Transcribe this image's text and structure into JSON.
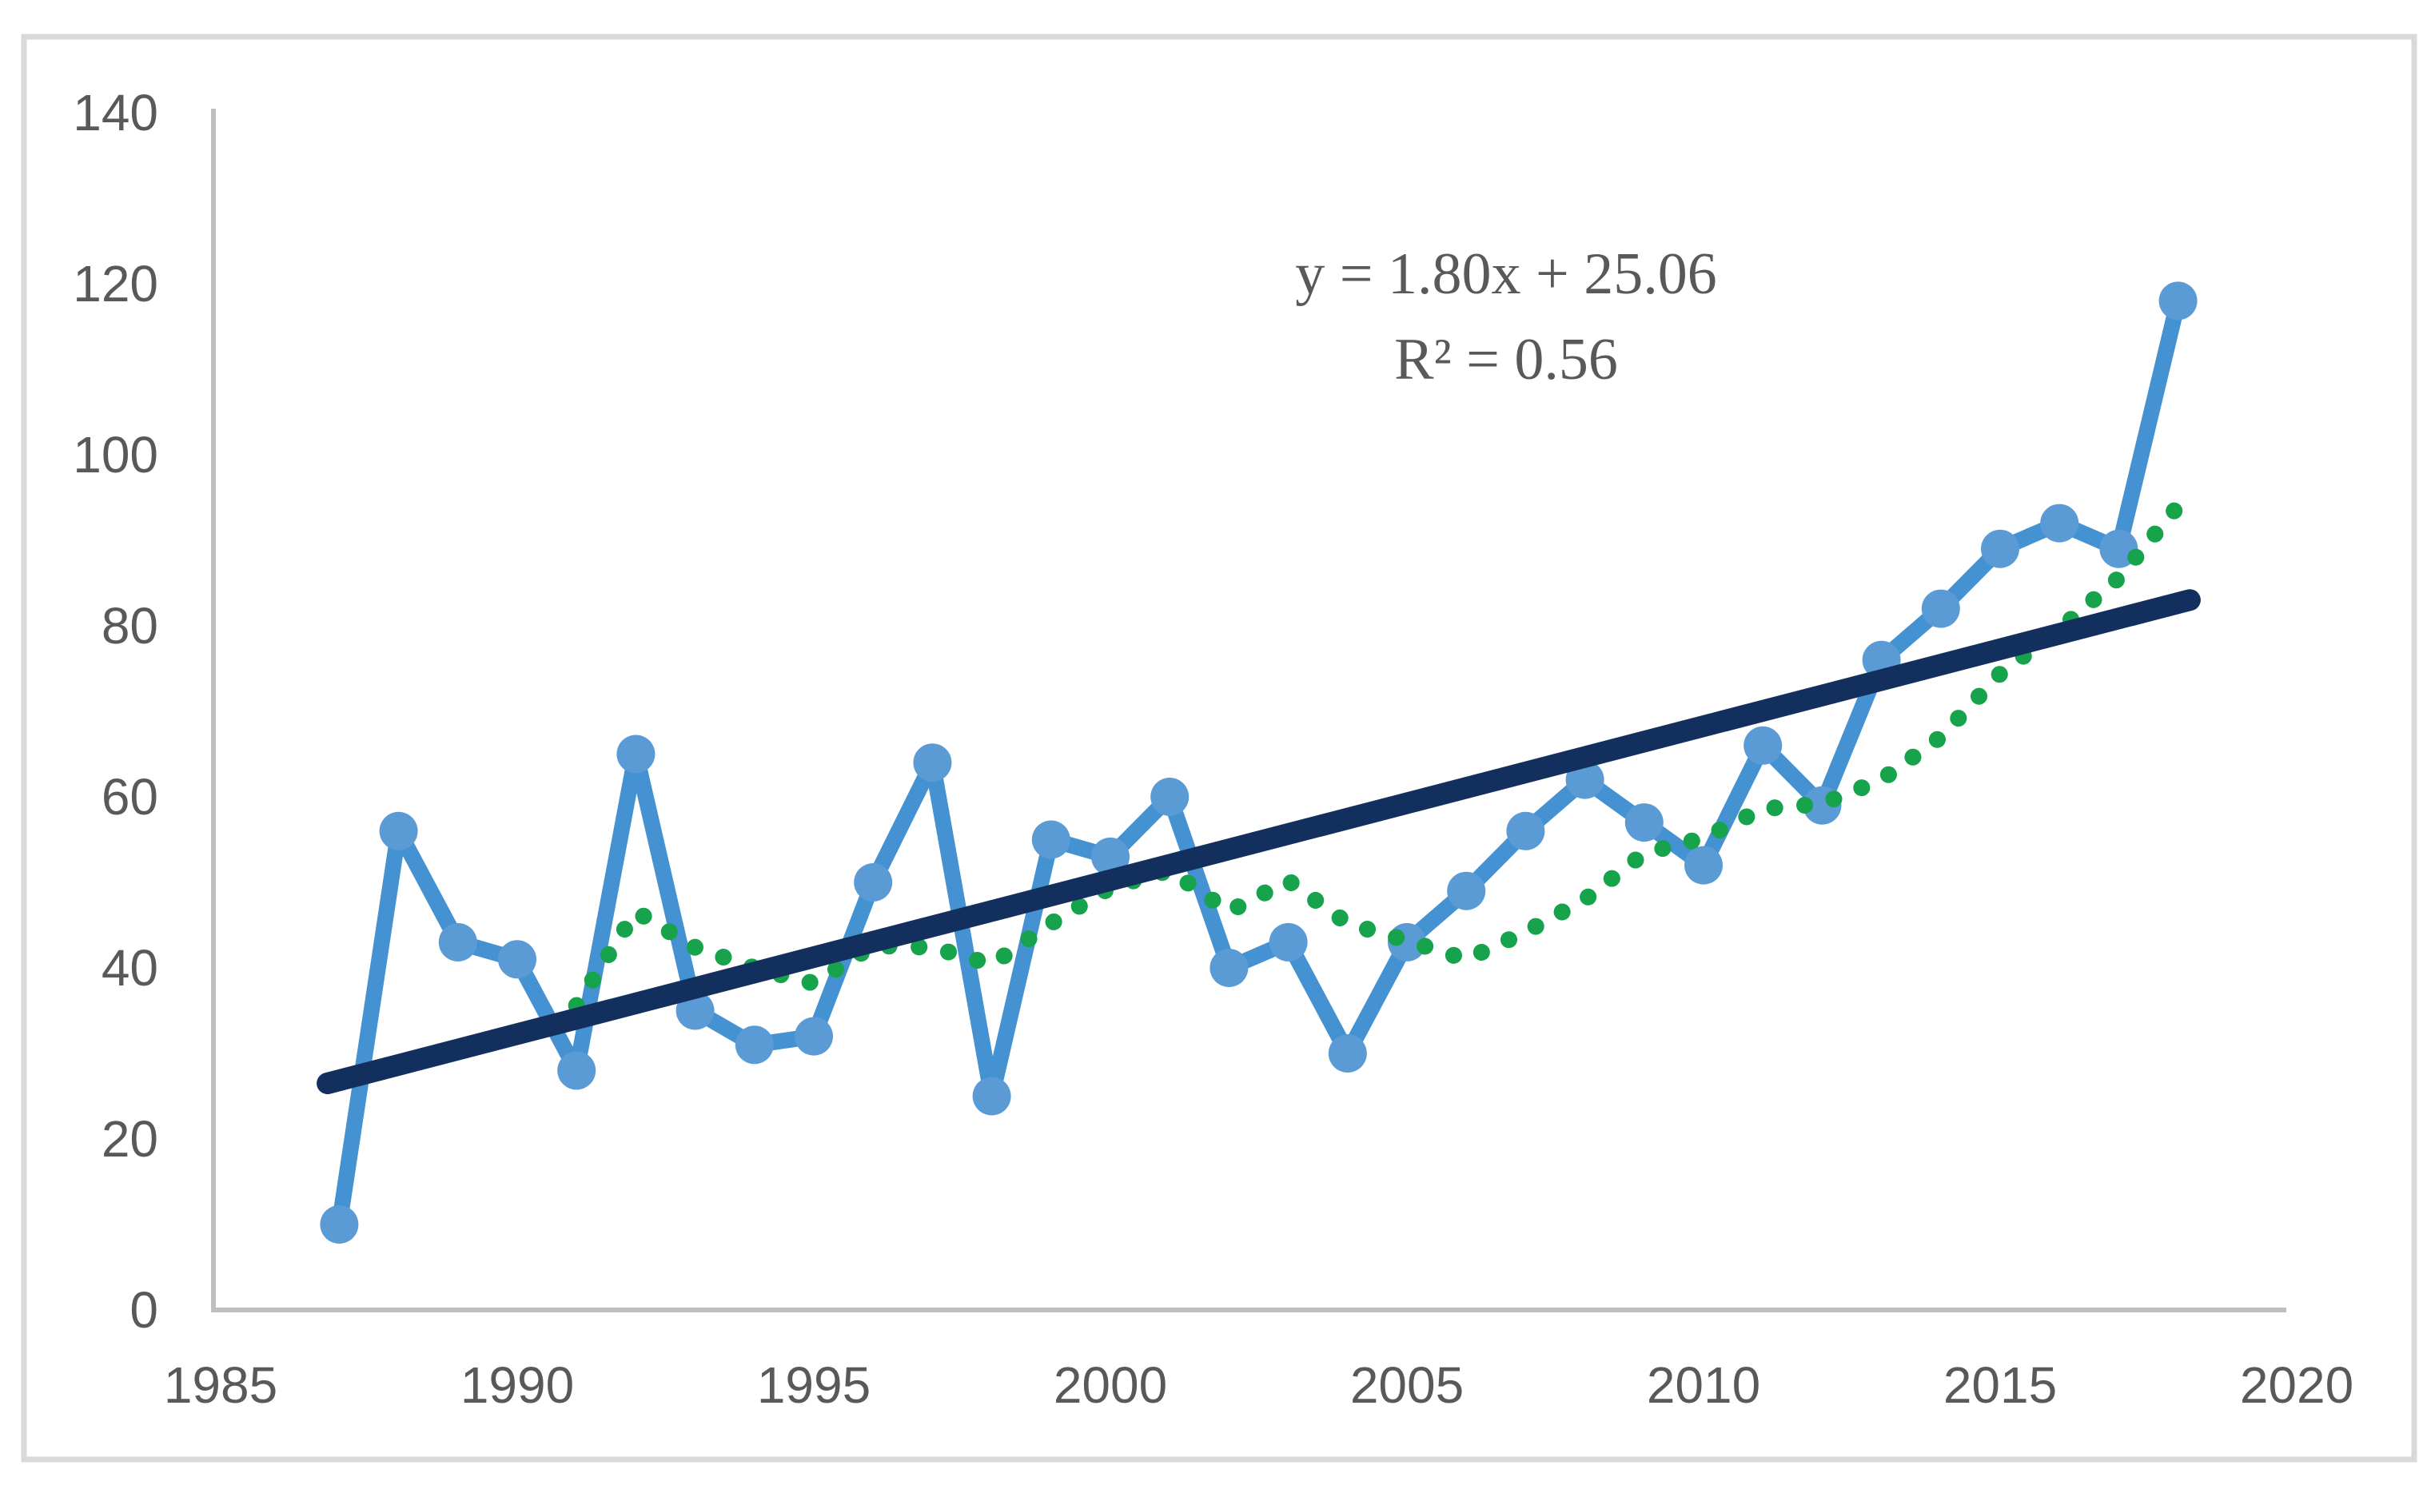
{
  "chart_data": {
    "type": "line",
    "title": "",
    "xlabel": "",
    "ylabel": "",
    "xlim": [
      1985,
      2020
    ],
    "ylim": [
      0,
      140
    ],
    "x_ticks": [
      1985,
      1990,
      1995,
      2000,
      2005,
      2010,
      2015,
      2020
    ],
    "y_ticks": [
      0,
      20,
      40,
      60,
      80,
      100,
      120,
      140
    ],
    "grid": false,
    "legend_position": "none",
    "x": [
      1987,
      1988,
      1989,
      1990,
      1991,
      1992,
      1993,
      1994,
      1995,
      1996,
      1997,
      1998,
      1999,
      2000,
      2001,
      2002,
      2003,
      2004,
      2005,
      2006,
      2007,
      2008,
      2009,
      2010,
      2011,
      2012,
      2013,
      2014,
      2015,
      2016,
      2017,
      2018
    ],
    "series": [
      {
        "name": "annual-values",
        "style": "solid-line-with-round-markers",
        "line_color": "#4492d2",
        "marker_color": "#5b9bd5",
        "values": [
          10,
          56,
          43,
          41,
          28,
          65,
          35,
          31,
          32,
          50,
          64,
          25,
          55,
          53,
          60,
          40,
          43,
          30,
          43,
          49,
          56,
          62,
          57,
          52,
          66,
          59,
          76,
          82,
          89,
          92,
          89,
          118
        ]
      },
      {
        "name": "five-year-moving-average",
        "style": "dotted-line",
        "line_color": "#17a34c",
        "values": [
          null,
          null,
          null,
          null,
          35.6,
          46.6,
          42.4,
          40,
          38.2,
          42.6,
          42.4,
          40.4,
          45.2,
          49.4,
          51.4,
          46.6,
          50.2,
          45.2,
          43.2,
          41,
          44.2,
          48,
          53.4,
          55.2,
          58.6,
          59.2,
          62,
          67,
          74.4,
          79.6,
          85.6,
          94
        ]
      }
    ],
    "trendline": {
      "name": "linear-trendline",
      "style": "solid-line",
      "line_color": "#122f5e",
      "slope": 1.8,
      "intercept": 25.06,
      "r_squared": 0.56,
      "x_index_of_first_year": 1
    },
    "annotation": {
      "line1": "y = 1.80x + 25.06",
      "line2": "R² = 0.56"
    },
    "colors": {
      "background": "#ffffff",
      "border": "#d9d9d9",
      "axis_line": "#bfbfbf",
      "tick_text": "#595959",
      "equation_text": "#595959"
    }
  }
}
